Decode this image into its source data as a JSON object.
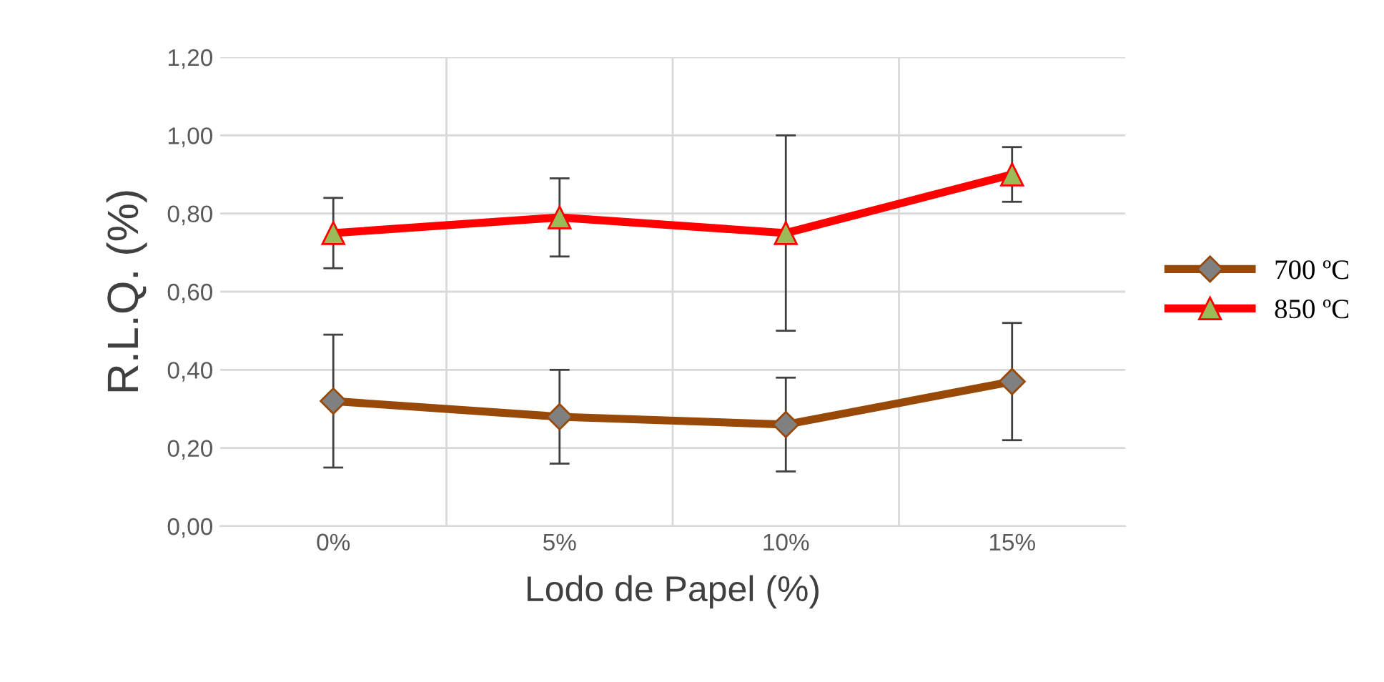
{
  "chart_data": {
    "type": "line",
    "xlabel": "Lodo de Papel (%)",
    "ylabel": "R.L.Q. (%)",
    "categories": [
      "0%",
      "5%",
      "10%",
      "15%"
    ],
    "series": [
      {
        "name": "700 ºC",
        "color": "#984807",
        "marker": "diamond",
        "values": [
          0.32,
          0.28,
          0.26,
          0.37
        ],
        "errors": [
          [
            0.15,
            0.49
          ],
          [
            0.16,
            0.4
          ],
          [
            0.14,
            0.38
          ],
          [
            0.22,
            0.52
          ]
        ]
      },
      {
        "name": "850 ºC",
        "color": "#ff0000",
        "marker": "triangle",
        "values": [
          0.75,
          0.79,
          0.75,
          0.9
        ],
        "errors": [
          [
            0.66,
            0.84
          ],
          [
            0.69,
            0.89
          ],
          [
            0.5,
            1.0
          ],
          [
            0.83,
            0.97
          ]
        ]
      }
    ],
    "ylim": [
      0,
      1.2
    ],
    "yticks": [
      {
        "value": 0,
        "label": "0,00"
      },
      {
        "value": 0.2,
        "label": "0,20"
      },
      {
        "value": 0.4,
        "label": "0,40"
      },
      {
        "value": 0.6,
        "label": "0,60"
      },
      {
        "value": 0.8,
        "label": "0,80"
      },
      {
        "value": 1.0,
        "label": "1,00"
      },
      {
        "value": 1.2,
        "label": "1,20"
      }
    ],
    "grid": true,
    "legend": "right",
    "line_style": "solid"
  }
}
